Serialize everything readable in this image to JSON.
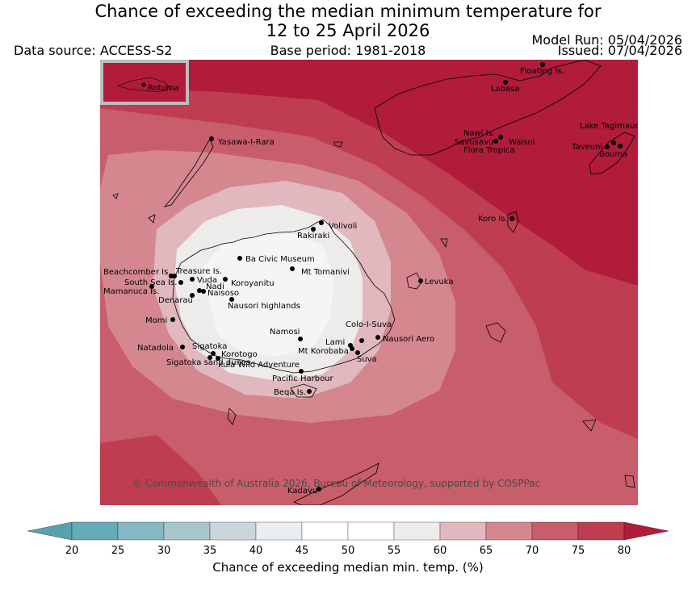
{
  "title": "Chance of exceeding the median minimum temperature for\n12 to 25 April 2026",
  "data_source": "Data source: ACCESS-S2",
  "base_period": "Base period: 1981-2018",
  "model_run": "Model Run: 05/04/2026",
  "issued": "Issued: 07/04/2026",
  "copyright": "© Commonwealth of Australia 2026, Bureau of Meteorology, supported by COSPPac",
  "inset_label": "Rotuma",
  "places": [
    "Floating Is.",
    "Labasa",
    "Yasawa-I-Rara",
    "Nawi Is.",
    "Savusavu",
    "Waisoi",
    "Flora Tropica",
    "Lake Tagimaucia",
    "Taveuni",
    "Bouma",
    "Koro Is.",
    "Volivoli",
    "Rakiraki",
    "Ba Civic Museum",
    "Mt Tomanivi",
    "Beachcomber Is.",
    "Treasure Is.",
    "South Sea Is.",
    "Vuda",
    "Koroyanitu",
    "Nadi",
    "Mamanuca Is.",
    "Naisoso",
    "Denarau",
    "Nausori highlands",
    "Levuka",
    "Momi",
    "Namosi",
    "Colo-I-Suva",
    "Nausori Aero",
    "Lami",
    "Mt Korobaba",
    "Suva",
    "Natadola",
    "Sigatoka",
    "Korotogo",
    "Sigatoka sand dunes",
    "Kula Wild Adventure",
    "Pacific Harbour",
    "Beqa Is.",
    "Kadavu"
  ],
  "colorbar": {
    "label": "Chance of exceeding median min. temp. (%)",
    "ticks": [
      "20",
      "25",
      "30",
      "35",
      "40",
      "45",
      "50",
      "55",
      "60",
      "65",
      "70",
      "75",
      "80"
    ],
    "bins": [
      {
        "from": 20,
        "to": 25,
        "color": "#66abb8"
      },
      {
        "from": 25,
        "to": 30,
        "color": "#86b8c3"
      },
      {
        "from": 30,
        "to": 35,
        "color": "#a7c7cd"
      },
      {
        "from": 35,
        "to": 40,
        "color": "#c9d6da"
      },
      {
        "from": 40,
        "to": 45,
        "color": "#e9eef0"
      },
      {
        "from": 45,
        "to": 50,
        "color": "#ffffff"
      },
      {
        "from": 50,
        "to": 55,
        "color": "#ffffff"
      },
      {
        "from": 55,
        "to": 60,
        "color": "#eeeceb"
      },
      {
        "from": 60,
        "to": 65,
        "color": "#e0b8bd"
      },
      {
        "from": 65,
        "to": 70,
        "color": "#d4878f"
      },
      {
        "from": 70,
        "to": 75,
        "color": "#c85d6c"
      },
      {
        "from": 75,
        "to": 80,
        "color": "#bf3d50"
      }
    ],
    "under_color": "#5aa1b0",
    "over_color": "#b01c3a"
  }
}
